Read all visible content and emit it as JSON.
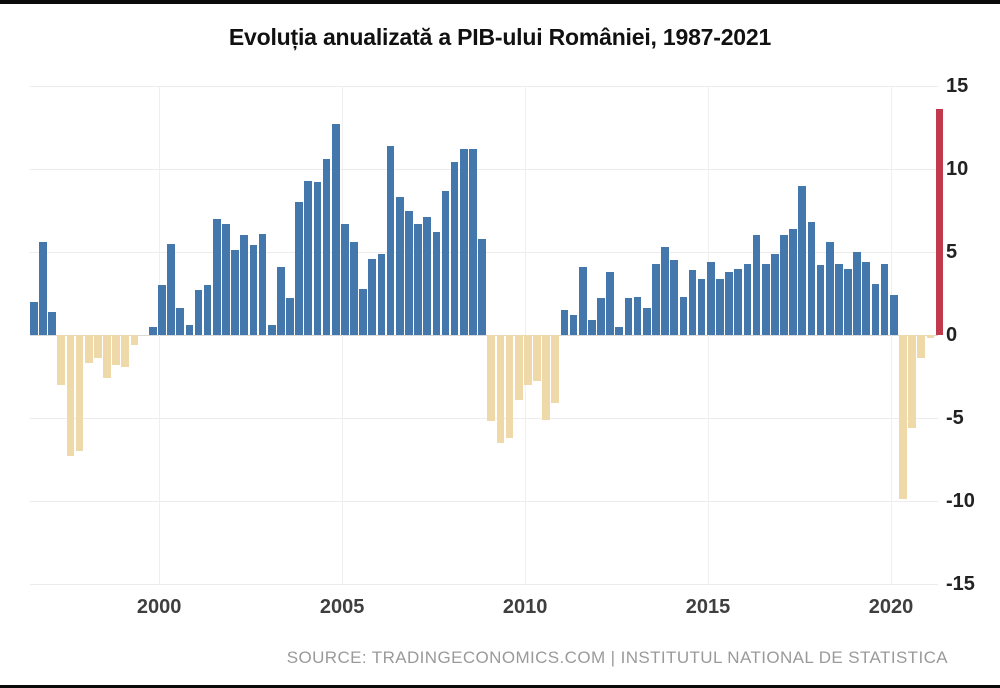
{
  "title": "Evoluția anualizată a PIB-ului României, 1987-2021",
  "source_line": "SOURCE: TRADINGECONOMICS.COM | INSTITUTUL NATIONAL DE STATISTICA",
  "chart_data": {
    "type": "bar",
    "title": "Evoluția anualizată a PIB-ului României, 1987-2021",
    "frequency": "quarterly",
    "xlabel": "",
    "ylabel": "",
    "ylim": [
      -15,
      15
    ],
    "grid": true,
    "y_axis_side": "right",
    "y_axis_ticks": [
      15,
      10,
      5,
      0,
      -5,
      -10,
      -15
    ],
    "x_axis_ticks": [
      "2000",
      "2005",
      "2010",
      "2015",
      "2020"
    ],
    "x_tick_bar_index": [
      13.7,
      33.7,
      53.7,
      73.7,
      93.7
    ],
    "values": [
      2.0,
      5.6,
      1.4,
      -3.0,
      -7.3,
      -7.0,
      -1.7,
      -1.4,
      -2.6,
      -1.8,
      -1.9,
      -0.6,
      0.0,
      0.5,
      3.0,
      5.5,
      1.6,
      0.6,
      2.7,
      3.0,
      7.0,
      6.7,
      5.1,
      6.0,
      5.4,
      6.1,
      0.6,
      4.1,
      2.2,
      8.0,
      9.3,
      9.2,
      10.6,
      12.7,
      6.7,
      5.6,
      2.8,
      4.6,
      4.9,
      11.4,
      8.3,
      7.5,
      6.7,
      7.1,
      6.2,
      8.7,
      10.4,
      11.2,
      11.2,
      5.8,
      -5.2,
      -6.5,
      -6.2,
      -3.9,
      -3.0,
      -2.8,
      -5.1,
      -4.1,
      1.5,
      1.2,
      4.1,
      0.9,
      2.2,
      3.8,
      0.5,
      2.2,
      2.3,
      1.6,
      4.3,
      5.3,
      4.5,
      2.3,
      3.9,
      3.4,
      4.4,
      3.4,
      3.8,
      4.0,
      4.3,
      6.0,
      4.3,
      4.9,
      6.0,
      6.4,
      9.0,
      6.8,
      4.2,
      5.6,
      4.3,
      4.0,
      5.0,
      4.4,
      3.1,
      4.3,
      2.4,
      -9.9,
      -5.6,
      -1.4,
      -0.2,
      13.6
    ],
    "highlight_bar_index": 99,
    "colors": {
      "positive": "#4478ad",
      "negative": "#f0d9a8",
      "highlight": "#c03a4b",
      "gridline": "#ececec",
      "zero_line": "#d9d9d9"
    }
  }
}
